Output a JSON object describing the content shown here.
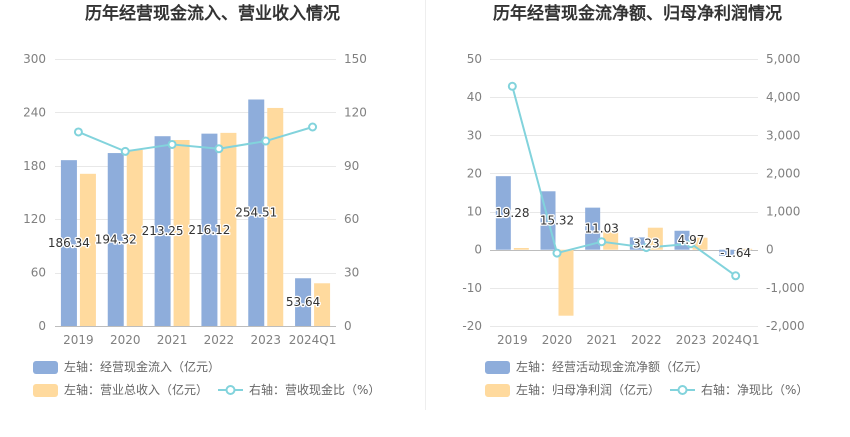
{
  "colors": {
    "background": "#ffffff",
    "title_text": "#333333",
    "axis_text": "#808080",
    "legend_text": "#666666",
    "grid_line": "#e8e8e8",
    "axis_line": "#bdbdbd",
    "divider": "#eeeeee",
    "data_label": "#333333"
  },
  "chart_data": [
    {
      "type": "bar",
      "title": "历年经营现金流入、营业收入情况",
      "categories": [
        "2019",
        "2020",
        "2021",
        "2022",
        "2023",
        "2024Q1"
      ],
      "y_left": {
        "range": [
          0,
          300
        ],
        "ticks": [
          0,
          60,
          120,
          180,
          240,
          300
        ],
        "tick_labels": [
          "0",
          "60",
          "120",
          "180",
          "240",
          "300"
        ]
      },
      "y_right": {
        "range": [
          0,
          150
        ],
        "ticks": [
          0,
          30,
          60,
          90,
          120,
          150
        ],
        "tick_labels": [
          "0",
          "30",
          "60",
          "90",
          "120",
          "150"
        ]
      },
      "bar_series": [
        {
          "name": "左轴：经营现金流入（亿元）",
          "values": [
            186.34,
            194.32,
            213.25,
            216.12,
            254.51,
            53.64
          ],
          "labeled": true,
          "color": "#8eaddb"
        },
        {
          "name": "左轴：营业总收入（亿元）",
          "values": [
            171.0,
            198.0,
            209.0,
            217.0,
            245.0,
            48.0
          ],
          "labeled": false,
          "color": "#ffda9e"
        }
      ],
      "line_series": [
        {
          "name": "右轴：营收现金比（%）",
          "values": [
            109.0,
            98.1,
            102.0,
            99.6,
            103.9,
            111.8
          ],
          "color": "#82d3dc"
        }
      ]
    },
    {
      "type": "bar",
      "title": "历年经营现金流净额、归母净利润情况",
      "categories": [
        "2019",
        "2020",
        "2021",
        "2022",
        "2023",
        "2024Q1"
      ],
      "y_left": {
        "range": [
          -20,
          50
        ],
        "ticks": [
          -20,
          -10,
          0,
          10,
          20,
          30,
          40,
          50
        ],
        "tick_labels": [
          "-20",
          "-10",
          "0",
          "10",
          "20",
          "30",
          "40",
          "50"
        ]
      },
      "y_right": {
        "range": [
          -2000,
          5000
        ],
        "ticks": [
          -2000,
          -1000,
          0,
          1000,
          2000,
          3000,
          4000,
          5000
        ],
        "tick_labels": [
          "-2,000",
          "-1,000",
          "0",
          "1,000",
          "2,000",
          "3,000",
          "4,000",
          "5,000"
        ]
      },
      "bar_series": [
        {
          "name": "左轴：经营活动现金流净额（亿元）",
          "values": [
            19.28,
            15.32,
            11.03,
            3.23,
            4.97,
            -1.64
          ],
          "labeled": true,
          "color": "#8eaddb"
        },
        {
          "name": "左轴：归母净利润（亿元）",
          "values": [
            0.45,
            -17.3,
            5.24,
            5.77,
            3.15,
            0.24
          ],
          "labeled": false,
          "color": "#ffda9e"
        }
      ],
      "line_series": [
        {
          "name": "右轴：净现比（%）",
          "values": [
            4284,
            -88.6,
            210.5,
            56.0,
            157.8,
            -683
          ],
          "color": "#82d3dc"
        }
      ]
    }
  ]
}
